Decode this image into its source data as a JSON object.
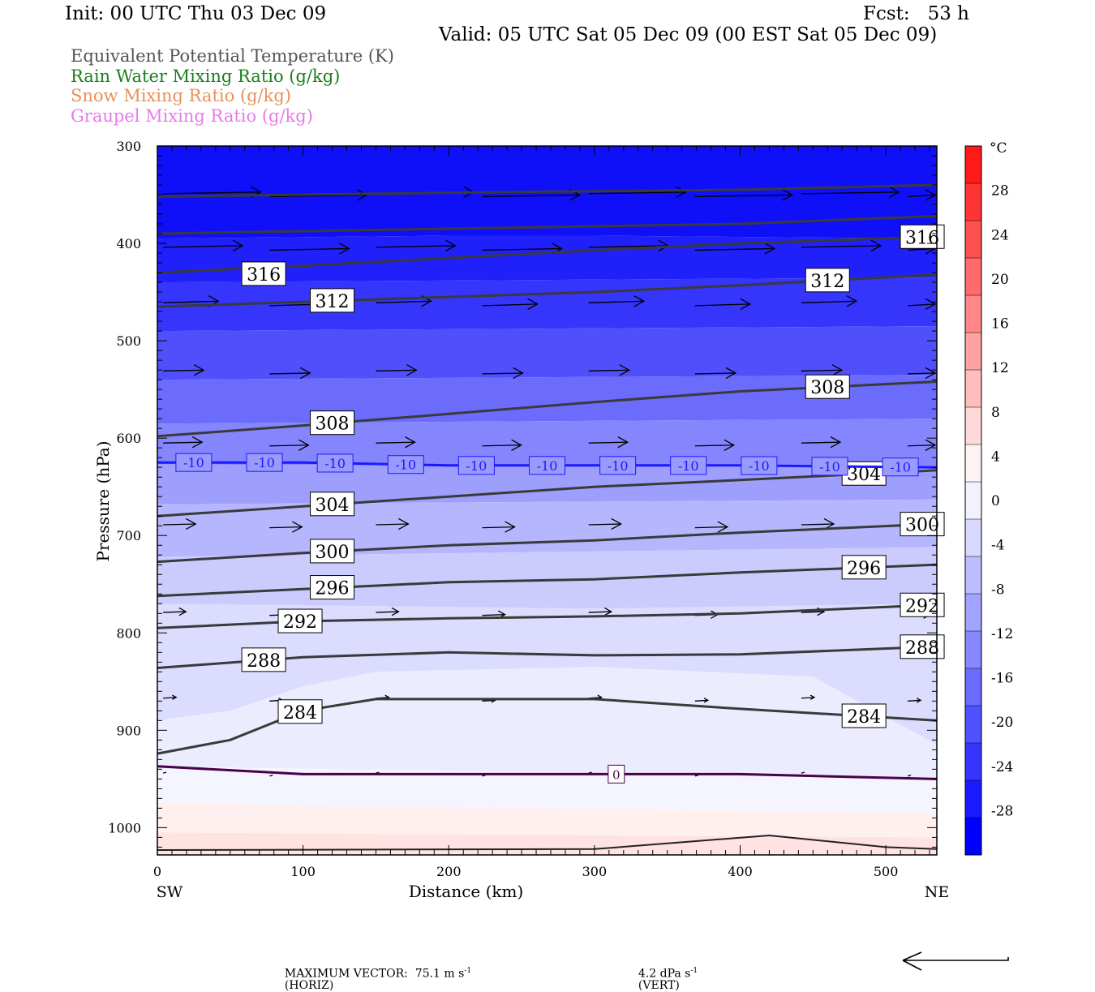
{
  "header": {
    "init": "Init: 00 UTC Thu 03 Dec 09",
    "fcst": "Fcst:   53 h",
    "valid": "Valid: 05 UTC Sat 05 Dec 09 (00 EST Sat 05 Dec 09)"
  },
  "legend": [
    {
      "text": "Equivalent Potential Temperature (K)",
      "color": "#555555"
    },
    {
      "text": "Rain Water Mixing Ratio (g/kg)",
      "color": "#1a7f1a"
    },
    {
      "text": "Snow Mixing Ratio (g/kg)",
      "color": "#e8915a"
    },
    {
      "text": "Graupel Mixing Ratio (g/kg)",
      "color": "#e87ae8"
    }
  ],
  "footer": {
    "max_vector": "MAXIMUM VECTOR:  75.1 m s",
    "horiz": "(HORIZ)",
    "vert_value": "4.2 dPa s",
    "vert": "(VERT)",
    "exp": "-1"
  },
  "chart_data": {
    "type": "cross-section",
    "xlabel": "Distance (km)",
    "ylabel": "Pressure (hPa)",
    "xlim": [
      0,
      535
    ],
    "ylim": [
      1028,
      300
    ],
    "x_ticks": [
      "0",
      "100",
      "200",
      "300",
      "400",
      "500"
    ],
    "y_ticks": [
      "300",
      "400",
      "500",
      "600",
      "700",
      "800",
      "900",
      "1000"
    ],
    "x_ends": {
      "left": "SW",
      "right": "NE"
    },
    "colorbar": {
      "unit": "°C",
      "labels": [
        "28",
        "24",
        "20",
        "16",
        "12",
        "8",
        "4",
        "0",
        "-4",
        "-8",
        "-12",
        "-16",
        "-20",
        "-24",
        "-28"
      ],
      "colors_top_to_bottom": [
        "#ff1a1a",
        "#ff3535",
        "#ff5050",
        "#ff6b6b",
        "#ff8787",
        "#ffa2a2",
        "#ffbdbd",
        "#ffd8d8",
        "#fff2f2",
        "#f2f2ff",
        "#d8d8ff",
        "#bdbdff",
        "#a2a2ff",
        "#8787ff",
        "#6b6bff",
        "#5050ff",
        "#3535ff",
        "#1a1aff",
        "#0000ff"
      ]
    },
    "theta_e_contours_K": [
      {
        "label": "316",
        "x": [
          0,
          100,
          200,
          300,
          400,
          535
        ],
        "p": [
          430,
          423,
          415,
          407,
          400,
          393
        ]
      },
      {
        "label": "312",
        "x": [
          0,
          100,
          200,
          300,
          400,
          535
        ],
        "p": [
          465,
          460,
          455,
          450,
          443,
          432
        ]
      },
      {
        "label": "308",
        "x": [
          0,
          100,
          200,
          300,
          400,
          535
        ],
        "p": [
          598,
          587,
          575,
          563,
          552,
          542
        ]
      },
      {
        "label": "304",
        "x": [
          0,
          100,
          200,
          300,
          400,
          535
        ],
        "p": [
          680,
          670,
          660,
          650,
          643,
          633
        ]
      },
      {
        "label": "300",
        "x": [
          0,
          100,
          200,
          300,
          400,
          535
        ],
        "p": [
          727,
          718,
          710,
          705,
          697,
          688
        ]
      },
      {
        "label": "296",
        "x": [
          0,
          100,
          200,
          300,
          400,
          535
        ],
        "p": [
          762,
          755,
          748,
          745,
          738,
          730
        ]
      },
      {
        "label": "292",
        "x": [
          0,
          100,
          200,
          300,
          400,
          535
        ],
        "p": [
          795,
          788,
          785,
          783,
          780,
          771
        ]
      },
      {
        "label": "288",
        "x": [
          0,
          100,
          200,
          300,
          400,
          535
        ],
        "p": [
          836,
          825,
          820,
          823,
          822,
          814
        ]
      },
      {
        "label": "284",
        "x": [
          0,
          50,
          100,
          150,
          300,
          400,
          535
        ],
        "p": [
          924,
          910,
          880,
          868,
          868,
          878,
          890
        ]
      }
    ],
    "temperature_isotherms_C": [
      {
        "label": "-10",
        "x": [
          0,
          100,
          200,
          300,
          400,
          535
        ],
        "p": [
          625,
          625,
          628,
          628,
          628,
          630
        ]
      },
      {
        "label": "0",
        "x": [
          0,
          100,
          200,
          300,
          400,
          535
        ],
        "p": [
          937,
          945,
          945,
          945,
          945,
          950
        ]
      }
    ],
    "max_vector": {
      "horizontal_m_s": 75.1,
      "vertical_dPa_s": 4.2
    }
  }
}
